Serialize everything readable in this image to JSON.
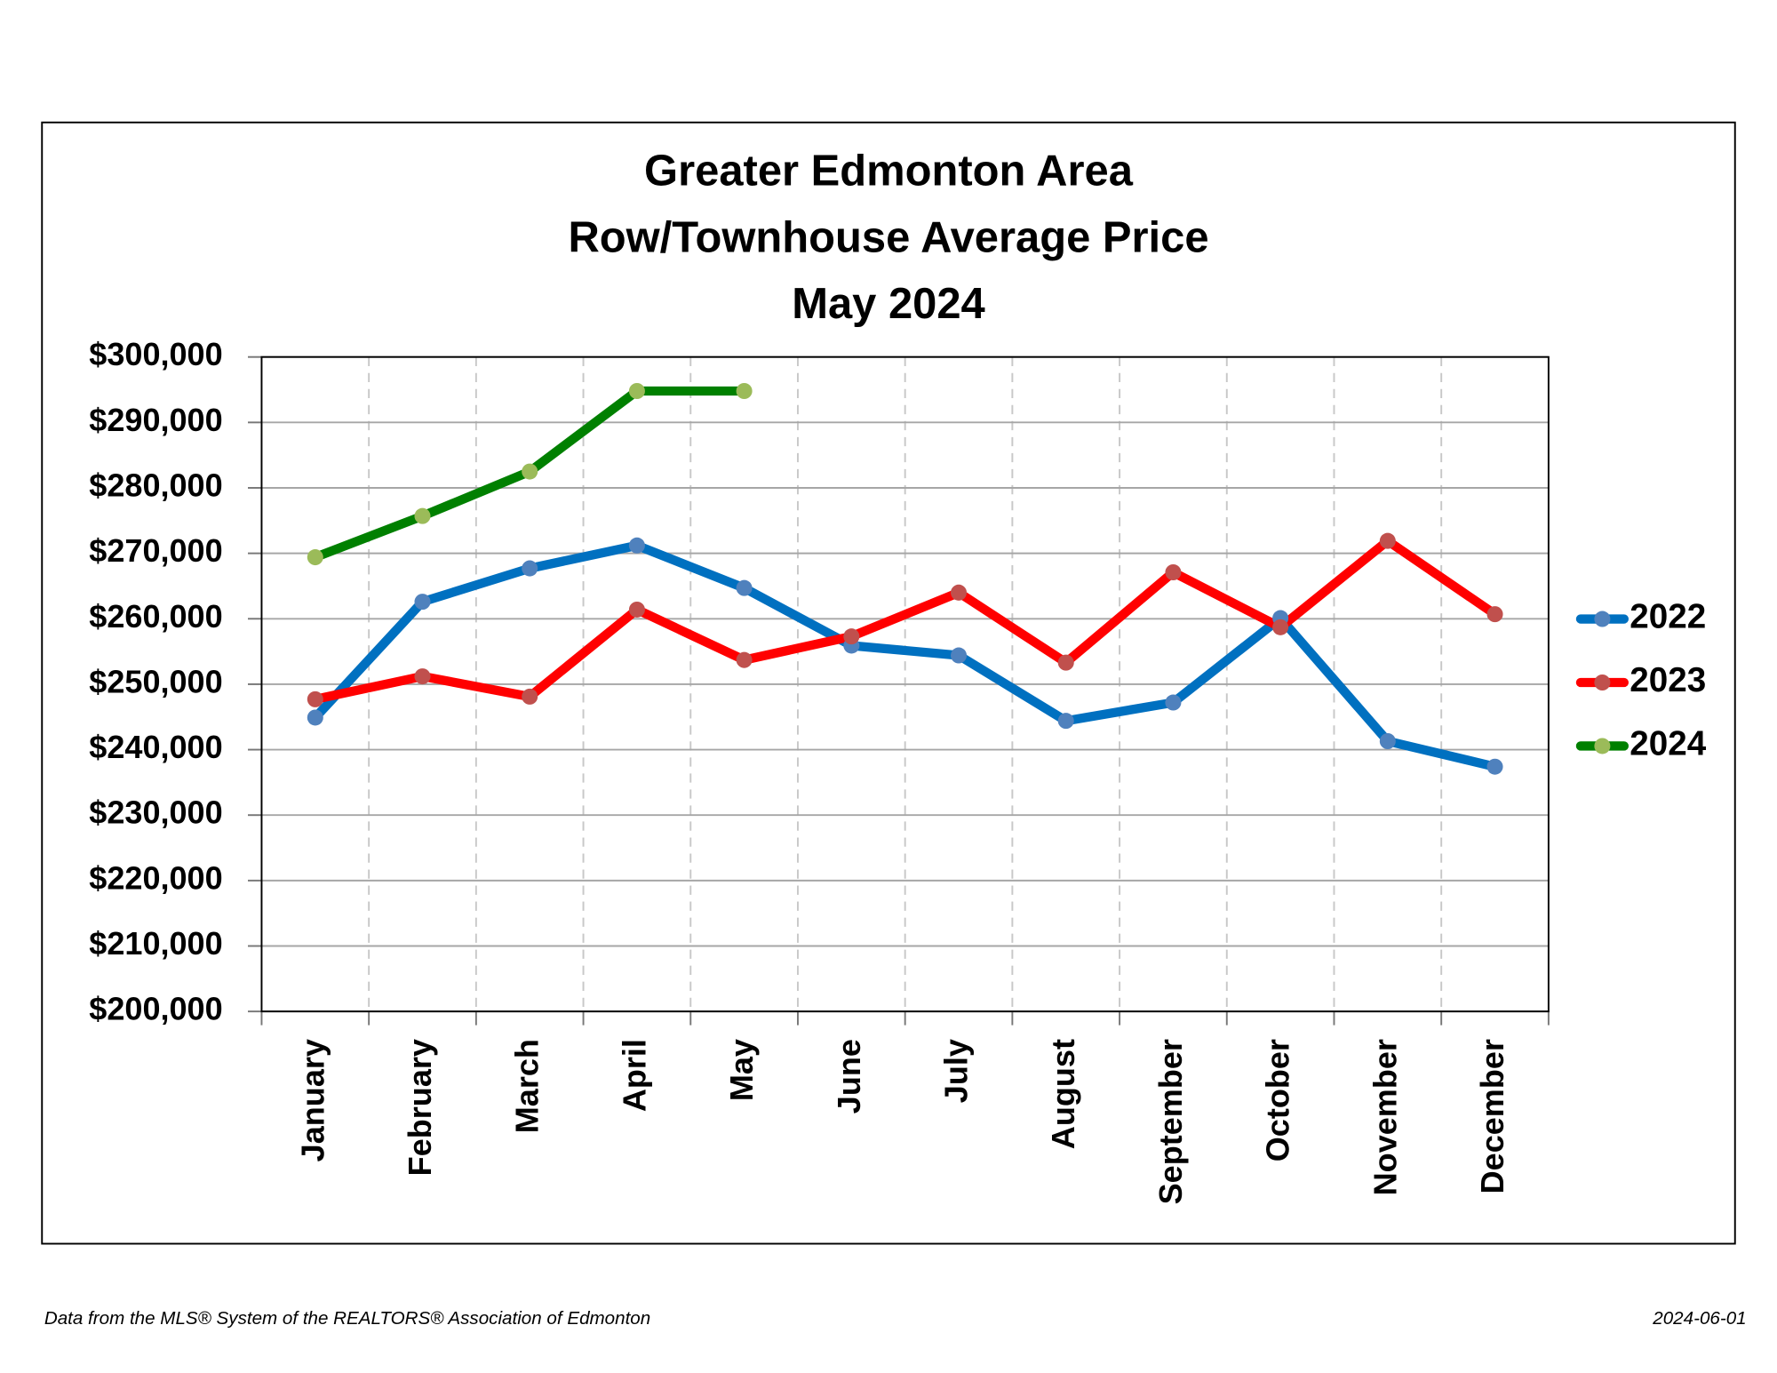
{
  "chart_data": {
    "type": "line",
    "title": [
      "Greater Edmonton Area",
      "Row/Townhouse Average Price",
      "May 2024"
    ],
    "categories": [
      "January",
      "February",
      "March",
      "April",
      "May",
      "June",
      "July",
      "August",
      "September",
      "October",
      "November",
      "December"
    ],
    "series": [
      {
        "name": "2022",
        "color": "#0070c0",
        "marker_color": "#4f81bd",
        "values": [
          244900,
          262600,
          267700,
          271200,
          264700,
          255900,
          254400,
          244400,
          247200,
          260100,
          241300,
          237400
        ]
      },
      {
        "name": "2023",
        "color": "#ff0000",
        "marker_color": "#c0504d",
        "values": [
          247700,
          251200,
          248100,
          261400,
          253700,
          257300,
          264000,
          253300,
          267100,
          258700,
          271900,
          260700
        ]
      },
      {
        "name": "2024",
        "color": "#008000",
        "marker_color": "#9bbb59",
        "values": [
          269400,
          275700,
          282500,
          294800,
          294800,
          null,
          null,
          null,
          null,
          null,
          null,
          null
        ]
      }
    ],
    "ylim": [
      200000,
      300000
    ],
    "yticks": [
      {
        "value": 200000,
        "label": "$200,000"
      },
      {
        "value": 210000,
        "label": "$210,000"
      },
      {
        "value": 220000,
        "label": "$220,000"
      },
      {
        "value": 230000,
        "label": "$230,000"
      },
      {
        "value": 240000,
        "label": "$240,000"
      },
      {
        "value": 250000,
        "label": "$250,000"
      },
      {
        "value": 260000,
        "label": "$260,000"
      },
      {
        "value": 270000,
        "label": "$270,000"
      },
      {
        "value": 280000,
        "label": "$280,000"
      },
      {
        "value": 290000,
        "label": "$290,000"
      },
      {
        "value": 300000,
        "label": "$300,000"
      }
    ],
    "grid": true,
    "legend": "right",
    "footer": {
      "source": "Data from the MLS® System of the REALTORS® Association of Edmonton",
      "date": "2024-06-01"
    }
  }
}
